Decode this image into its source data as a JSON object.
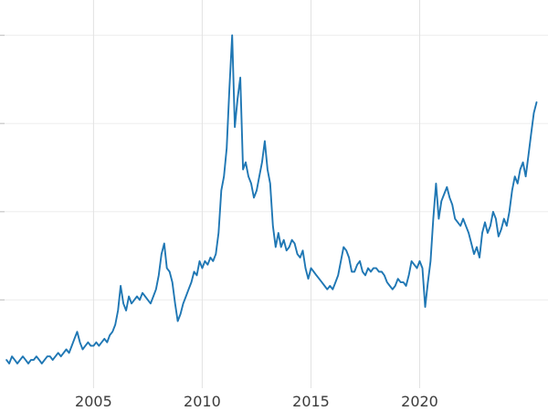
{
  "chart_data": {
    "type": "line",
    "title": "",
    "xlabel": "",
    "ylabel": "",
    "legend": null,
    "grid": true,
    "line_color": "#1f77b4",
    "grid_color_v": "#e2e2e2",
    "grid_color_h": "#ededed",
    "tick_label_color": "#3b3b3b",
    "x_tick_labels": [
      "2005",
      "2010",
      "2015",
      "2020"
    ],
    "x_ticks": [
      2005,
      2010,
      2015,
      2020
    ],
    "y_ticks": [
      25,
      50,
      75,
      100
    ],
    "y_axis_labels_visible": false,
    "xlim": [
      2000.7,
      2025.9
    ],
    "ylim": [
      0,
      110
    ],
    "x_start": 2001.0,
    "x_step": 0.125,
    "values_note": "relative level, percent of the 2011 peak (y-axis labels are cropped out of the visible image)",
    "values": [
      8,
      7,
      9,
      8,
      7,
      8,
      9,
      8,
      7,
      8,
      8,
      9,
      8,
      7,
      8,
      9,
      9,
      8,
      9,
      10,
      9,
      10,
      11,
      10,
      12,
      14,
      16,
      13,
      11,
      12,
      13,
      12,
      12,
      13,
      12,
      13,
      14,
      13,
      15,
      16,
      18,
      22,
      29,
      24,
      22,
      26,
      24,
      25,
      26,
      25,
      27,
      26,
      25,
      24,
      26,
      28,
      32,
      38,
      41,
      34,
      33,
      30,
      24,
      19,
      21,
      24,
      26,
      28,
      30,
      33,
      32,
      36,
      34,
      36,
      35,
      37,
      36,
      38,
      44,
      56,
      60,
      68,
      85,
      100,
      74,
      82,
      88,
      62,
      64,
      60,
      58,
      54,
      56,
      60,
      64,
      70,
      62,
      58,
      46,
      40,
      44,
      40,
      42,
      39,
      40,
      42,
      41,
      38,
      37,
      39,
      34,
      31,
      34,
      33,
      32,
      31,
      30,
      29,
      28,
      29,
      28,
      30,
      32,
      36,
      40,
      39,
      37,
      33,
      33,
      35,
      36,
      33,
      32,
      34,
      33,
      34,
      34,
      33,
      33,
      32,
      30,
      29,
      28,
      29,
      31,
      30,
      30,
      29,
      32,
      36,
      35,
      34,
      36,
      34,
      23,
      30,
      36,
      48,
      58,
      48,
      53,
      55,
      57,
      54,
      52,
      48,
      47,
      46,
      48,
      46,
      44,
      41,
      38,
      40,
      37,
      44,
      47,
      44,
      46,
      50,
      48,
      43,
      45,
      48,
      46,
      50,
      56,
      60,
      58,
      62,
      64,
      60,
      66,
      72,
      78,
      81
    ]
  }
}
